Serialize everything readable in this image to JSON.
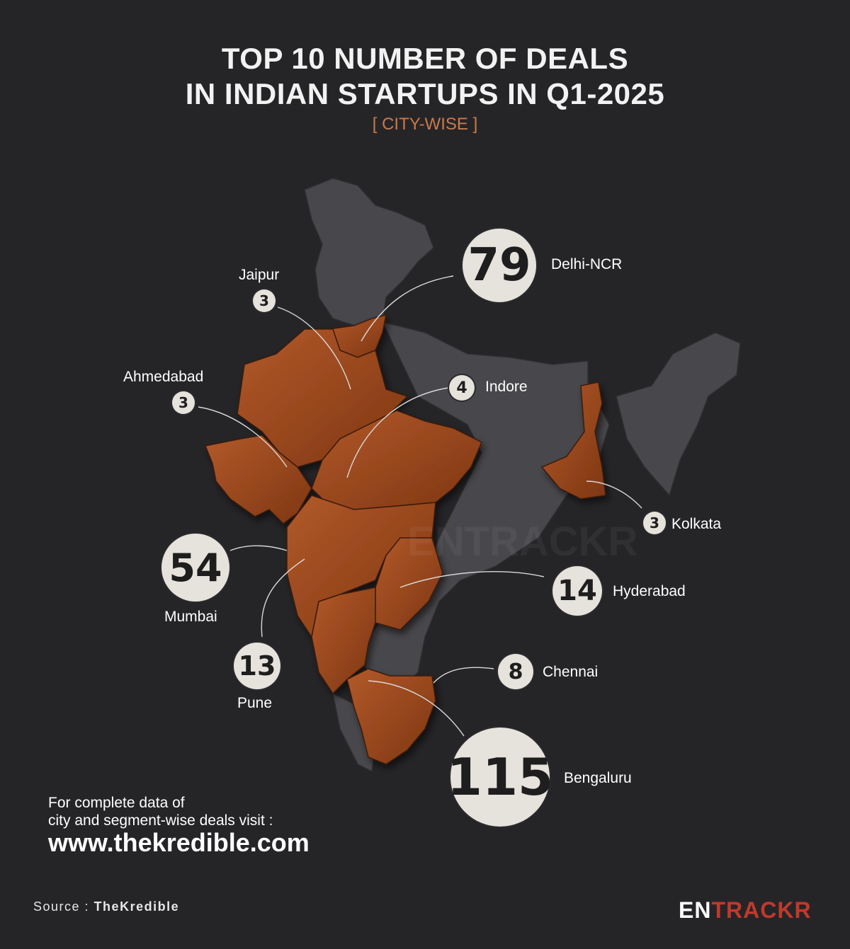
{
  "title_line1": "TOP 10 NUMBER OF DEALS",
  "title_line2": "IN INDIAN STARTUPS IN Q1-2025",
  "subtitle": "[ CITY-WISE ]",
  "watermark": "ENTRACKR",
  "colors": {
    "background": "#252528",
    "highlight_region": "#9c4a1e",
    "base_region": "#48484c",
    "badge": "#e6e2dc",
    "subtitle": "#c97a4a",
    "brand_accent": "#c0392b"
  },
  "cities": [
    {
      "name": "Delhi-NCR",
      "deals": 79
    },
    {
      "name": "Jaipur",
      "deals": 3
    },
    {
      "name": "Ahmedabad",
      "deals": 3
    },
    {
      "name": "Indore",
      "deals": 4
    },
    {
      "name": "Kolkata",
      "deals": 3
    },
    {
      "name": "Mumbai",
      "deals": 54
    },
    {
      "name": "Hyderabad",
      "deals": 14
    },
    {
      "name": "Pune",
      "deals": 13
    },
    {
      "name": "Chennai",
      "deals": 8
    },
    {
      "name": "Bengaluru",
      "deals": 115
    }
  ],
  "footer": {
    "note_line1": "For complete data of",
    "note_line2": "city and segment-wise deals visit :",
    "url": "www.thekredible.com"
  },
  "source": {
    "label": "Source :",
    "name": "TheKredible"
  },
  "brand": {
    "part1": "EN",
    "part2": "TRACKR"
  }
}
